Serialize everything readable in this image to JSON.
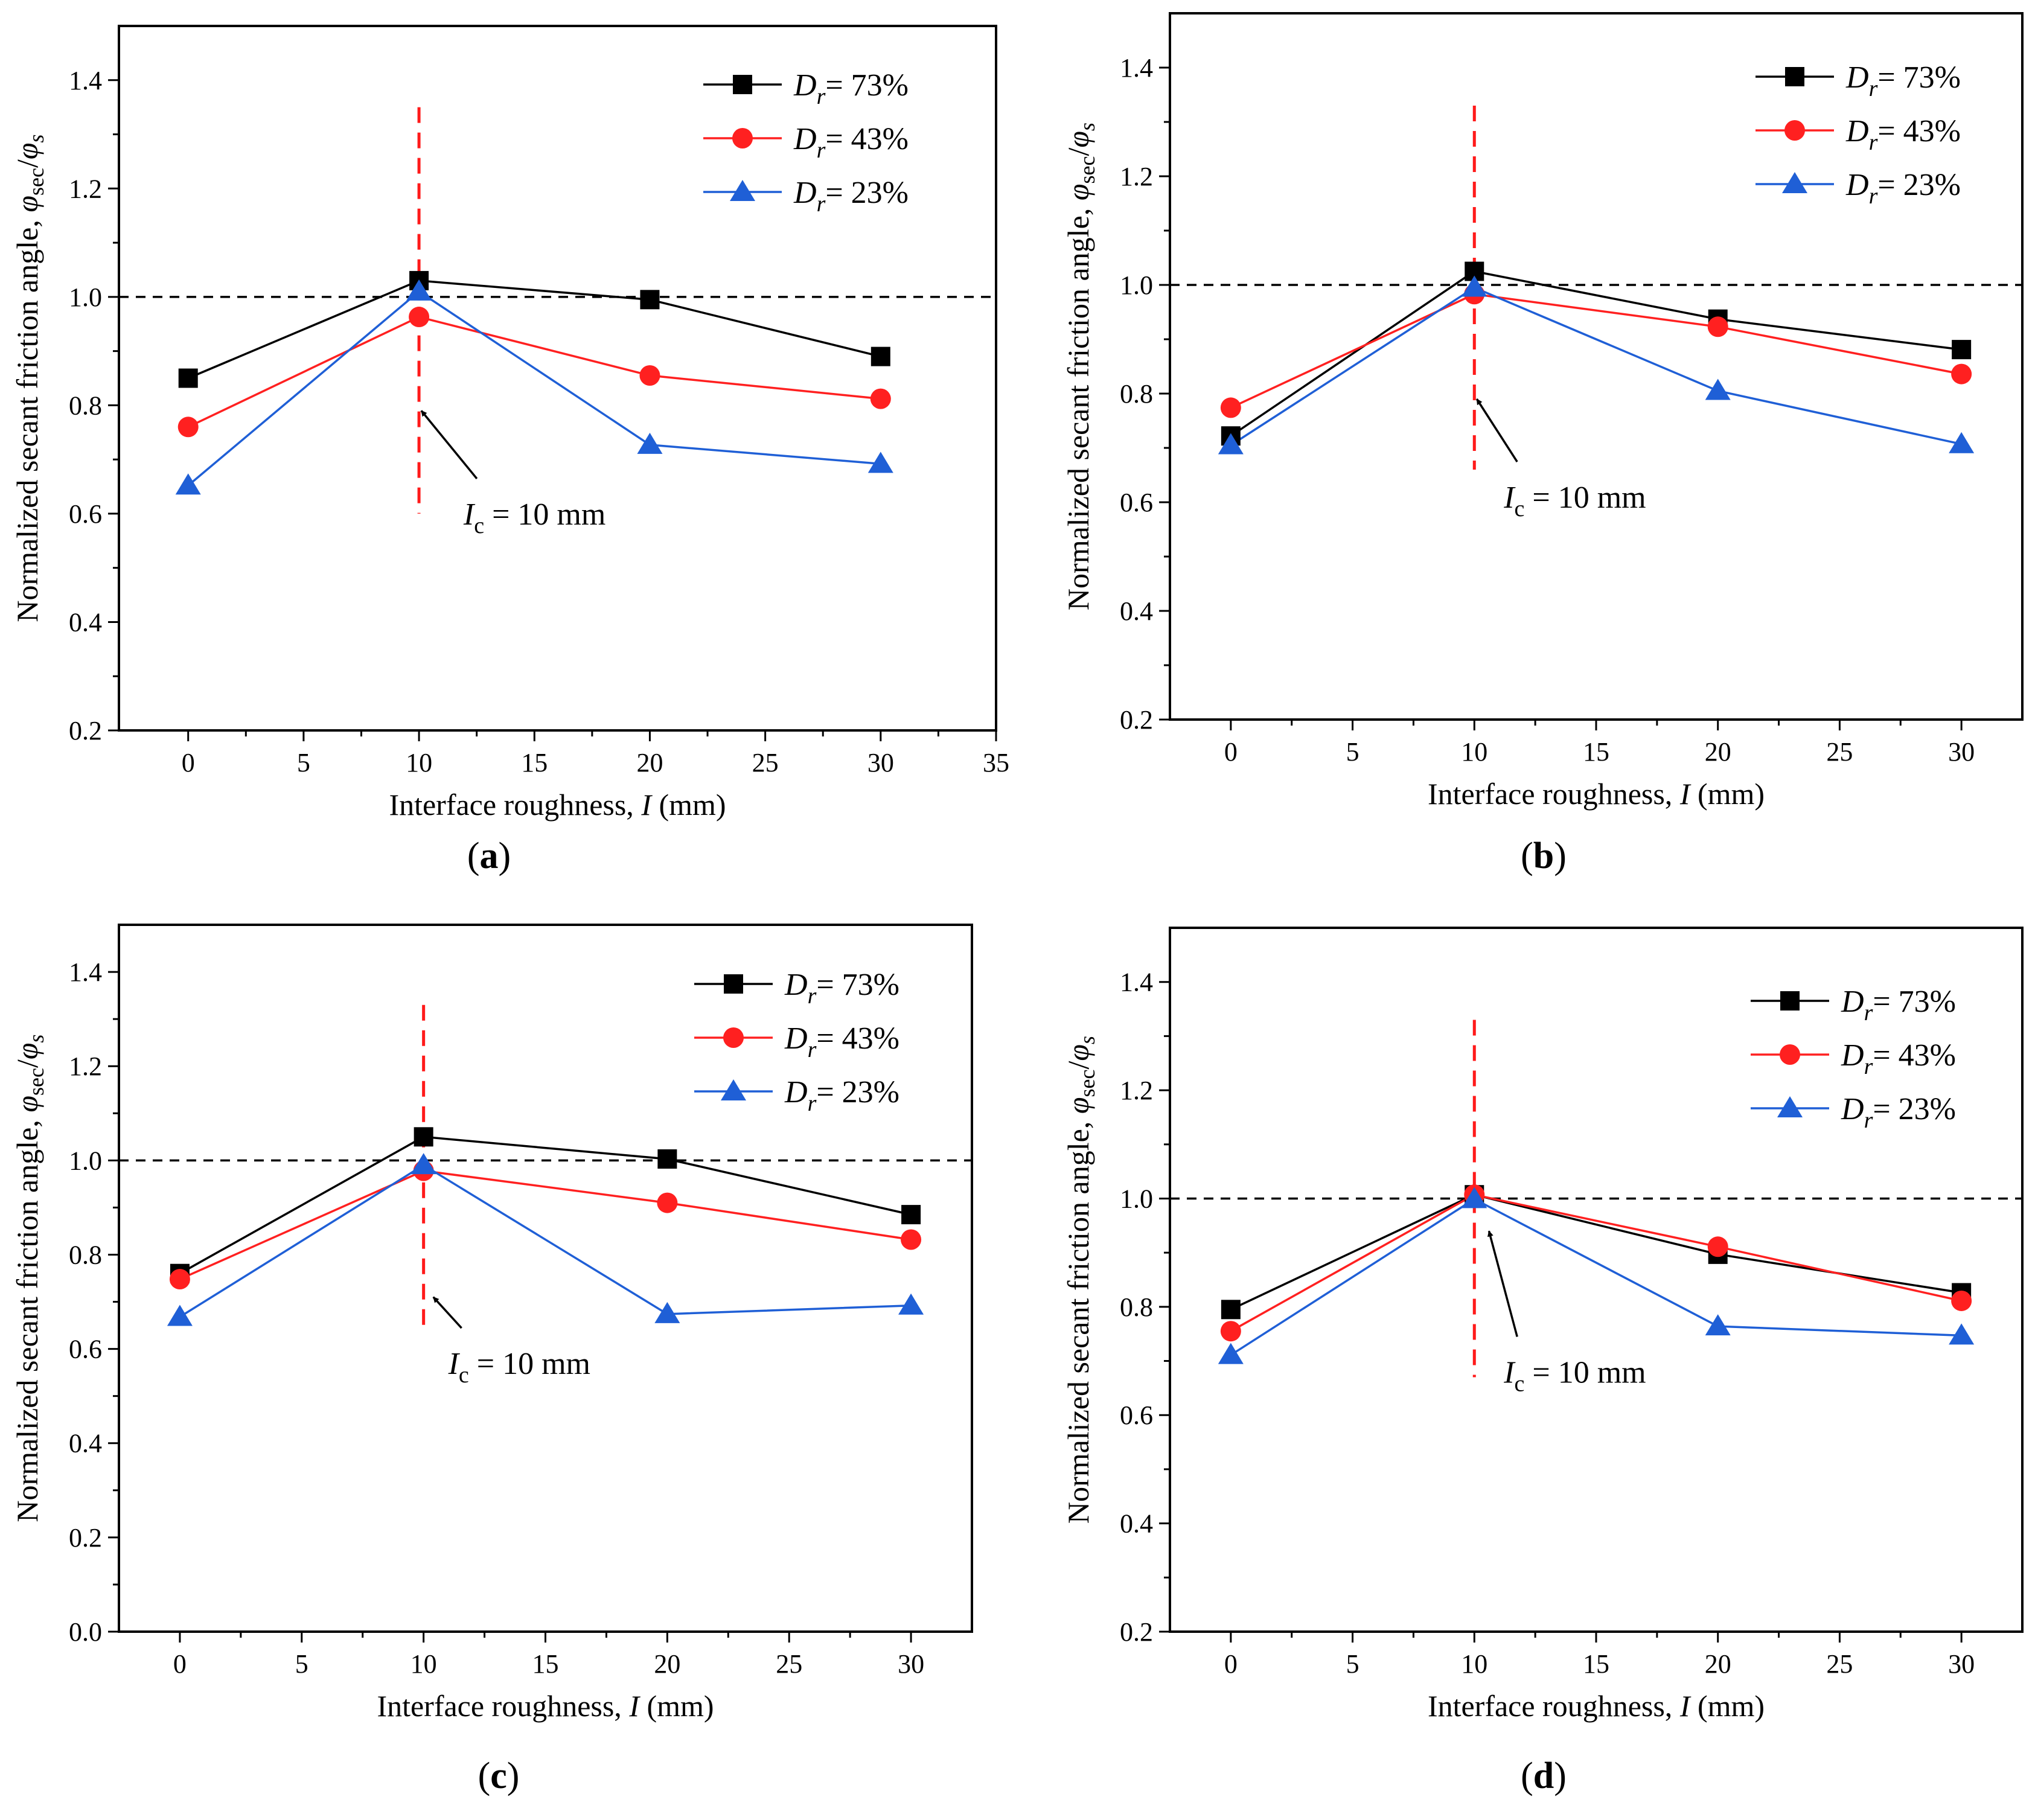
{
  "chart_data": [
    {
      "panel": "a",
      "panel_label_open": "(",
      "panel_label_letter": "a",
      "panel_label_close": ")",
      "type": "line",
      "xlabel_text": "Interface roughness, ",
      "xlabel_var": "I",
      "xlabel_unit": " (mm)",
      "ylabel_text": "Normalized secant friction angle,  ",
      "ylabel_phi": "φ",
      "ylabel_sub_sec": "sec",
      "ylabel_slash": "/",
      "ylabel_sub_s": "s",
      "xlim": [
        -3,
        35
      ],
      "ylim": [
        0.2,
        1.5
      ],
      "xticks": [
        "0",
        "5",
        "10",
        "15",
        "20",
        "25",
        "30",
        "35"
      ],
      "xtick_values": [
        0,
        5,
        10,
        15,
        20,
        25,
        30,
        35
      ],
      "yticks": [
        "0.2",
        "0.4",
        "0.6",
        "0.8",
        "1.0",
        "1.2",
        "1.4"
      ],
      "ytick_values": [
        0.2,
        0.4,
        0.6,
        0.8,
        1.0,
        1.2,
        1.4
      ],
      "reference_line_y": 1.0,
      "critical_x": 10,
      "critical_y_range": [
        0.6,
        1.35
      ],
      "annotation_var": "I",
      "annotation_sub": "c",
      "annotation_value": " = 10 mm",
      "annotation_point": [
        10.1,
        0.79
      ],
      "annotation_text_pos": [
        13.5,
        0.6
      ],
      "x": [
        0,
        10,
        20,
        30
      ],
      "series": [
        {
          "name_var": "D",
          "name_sub": "r",
          "name_value": "= 73%",
          "color": "#000000",
          "marker": "square",
          "values": [
            0.85,
            1.03,
            0.995,
            0.89
          ]
        },
        {
          "name_var": "D",
          "name_sub": "r",
          "name_value": "= 43%",
          "color": "#ff2020",
          "marker": "circle",
          "values": [
            0.76,
            0.963,
            0.855,
            0.812
          ]
        },
        {
          "name_var": "D",
          "name_sub": "r",
          "name_value": "= 23%",
          "color": "#1f5fd6",
          "marker": "triangle",
          "values": [
            0.652,
            1.01,
            0.727,
            0.692
          ]
        }
      ]
    },
    {
      "panel": "b",
      "panel_label_open": "(",
      "panel_label_letter": "b",
      "panel_label_close": ")",
      "type": "line",
      "xlabel_text": "Interface roughness, ",
      "xlabel_var": "I",
      "xlabel_unit": " (mm)",
      "ylabel_text": "Normalized secant friction angle,  ",
      "ylabel_phi": "φ",
      "ylabel_sub_sec": "sec",
      "ylabel_slash": "/",
      "ylabel_sub_s": "s",
      "xlim": [
        -2.5,
        32.5
      ],
      "ylim": [
        0.2,
        1.5
      ],
      "xticks": [
        "0",
        "5",
        "10",
        "15",
        "20",
        "25",
        "30"
      ],
      "xtick_values": [
        0,
        5,
        10,
        15,
        20,
        25,
        30
      ],
      "yticks": [
        "0.2",
        "0.4",
        "0.6",
        "0.8",
        "1.0",
        "1.2",
        "1.4"
      ],
      "ytick_values": [
        0.2,
        0.4,
        0.6,
        0.8,
        1.0,
        1.2,
        1.4
      ],
      "reference_line_y": 1.0,
      "critical_x": 10,
      "critical_y_range": [
        0.66,
        1.33
      ],
      "annotation_var": "I",
      "annotation_sub": "c",
      "annotation_value": " = 10 mm",
      "annotation_point": [
        10.1,
        0.79
      ],
      "annotation_text_pos": [
        12.7,
        0.61
      ],
      "x": [
        0,
        10,
        20,
        30
      ],
      "series": [
        {
          "name_var": "D",
          "name_sub": "r",
          "name_value": "= 73%",
          "color": "#000000",
          "marker": "square",
          "values": [
            0.722,
            1.025,
            0.937,
            0.881
          ]
        },
        {
          "name_var": "D",
          "name_sub": "r",
          "name_value": "= 43%",
          "color": "#ff2020",
          "marker": "circle",
          "values": [
            0.774,
            0.983,
            0.923,
            0.836
          ]
        },
        {
          "name_var": "D",
          "name_sub": "r",
          "name_value": "= 23%",
          "color": "#1f5fd6",
          "marker": "triangle",
          "values": [
            0.705,
            0.995,
            0.805,
            0.707
          ]
        }
      ]
    },
    {
      "panel": "c",
      "panel_label_open": "(",
      "panel_label_letter": "c",
      "panel_label_close": ")",
      "type": "line",
      "xlabel_text": "Interface roughness, ",
      "xlabel_var": "I",
      "xlabel_unit": " (mm)",
      "ylabel_text": "Normalized secant friction angle,  ",
      "ylabel_phi": "φ",
      "ylabel_sub_sec": "sec",
      "ylabel_slash": "/",
      "ylabel_sub_s": "s",
      "xlim": [
        -2.5,
        32.5
      ],
      "ylim": [
        0.0,
        1.5
      ],
      "xticks": [
        "0",
        "5",
        "10",
        "15",
        "20",
        "25",
        "30"
      ],
      "xtick_values": [
        0,
        5,
        10,
        15,
        20,
        25,
        30
      ],
      "yticks": [
        "0.0",
        "0.2",
        "0.4",
        "0.6",
        "0.8",
        "1.0",
        "1.2",
        "1.4"
      ],
      "ytick_values": [
        0.0,
        0.2,
        0.4,
        0.6,
        0.8,
        1.0,
        1.2,
        1.4
      ],
      "reference_line_y": 1.0,
      "critical_x": 10,
      "critical_y_range": [
        0.65,
        1.33
      ],
      "annotation_var": "I",
      "annotation_sub": "c",
      "annotation_value": " = 10 mm",
      "annotation_point": [
        10.4,
        0.71
      ],
      "annotation_text_pos": [
        12.5,
        0.57
      ],
      "x": [
        0,
        10,
        20,
        30
      ],
      "series": [
        {
          "name_var": "D",
          "name_sub": "r",
          "name_value": "= 73%",
          "color": "#000000",
          "marker": "square",
          "values": [
            0.76,
            1.05,
            1.003,
            0.885
          ]
        },
        {
          "name_var": "D",
          "name_sub": "r",
          "name_value": "= 43%",
          "color": "#ff2020",
          "marker": "circle",
          "values": [
            0.748,
            0.978,
            0.91,
            0.832
          ]
        },
        {
          "name_var": "D",
          "name_sub": "r",
          "name_value": "= 23%",
          "color": "#1f5fd6",
          "marker": "triangle",
          "values": [
            0.668,
            0.99,
            0.674,
            0.692
          ]
        }
      ]
    },
    {
      "panel": "d",
      "panel_label_open": "(",
      "panel_label_letter": "d",
      "panel_label_close": ")",
      "type": "line",
      "xlabel_text": "Interface roughness, ",
      "xlabel_var": "I",
      "xlabel_unit": " (mm)",
      "ylabel_text": "Normalized secant friction angle,  ",
      "ylabel_phi": "φ",
      "ylabel_sub_sec": "sec",
      "ylabel_slash": "/",
      "ylabel_sub_s": "s",
      "xlim": [
        -2.5,
        32.5
      ],
      "ylim": [
        0.2,
        1.5
      ],
      "xticks": [
        "0",
        "5",
        "10",
        "15",
        "20",
        "25",
        "30"
      ],
      "xtick_values": [
        0,
        5,
        10,
        15,
        20,
        25,
        30
      ],
      "yticks": [
        "0.2",
        "0.4",
        "0.6",
        "0.8",
        "1.0",
        "1.2",
        "1.4"
      ],
      "ytick_values": [
        0.2,
        0.4,
        0.6,
        0.8,
        1.0,
        1.2,
        1.4
      ],
      "reference_line_y": 1.0,
      "critical_x": 10,
      "critical_y_range": [
        0.67,
        1.33
      ],
      "annotation_var": "I",
      "annotation_sub": "c",
      "annotation_value": " = 10 mm",
      "annotation_point": [
        10.6,
        0.94
      ],
      "annotation_text_pos": [
        12.7,
        0.68
      ],
      "x": [
        0,
        10,
        20,
        30
      ],
      "series": [
        {
          "name_var": "D",
          "name_sub": "r",
          "name_value": "= 73%",
          "color": "#000000",
          "marker": "square",
          "values": [
            0.795,
            1.007,
            0.897,
            0.826
          ]
        },
        {
          "name_var": "D",
          "name_sub": "r",
          "name_value": "= 43%",
          "color": "#ff2020",
          "marker": "circle",
          "values": [
            0.755,
            1.007,
            0.911,
            0.811
          ]
        },
        {
          "name_var": "D",
          "name_sub": "r",
          "name_value": "= 23%",
          "color": "#1f5fd6",
          "marker": "triangle",
          "values": [
            0.711,
            0.999,
            0.764,
            0.747
          ]
        }
      ]
    }
  ]
}
